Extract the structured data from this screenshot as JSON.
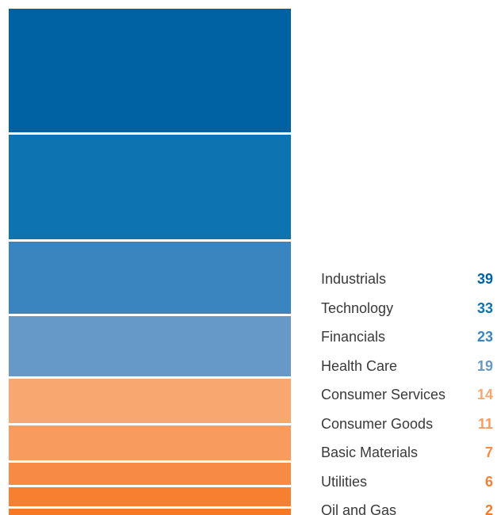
{
  "chart_data": {
    "type": "bar",
    "orientation": "stacked-vertical",
    "categories": [
      "Industrials",
      "Technology",
      "Financials",
      "Health Care",
      "Consumer Services",
      "Consumer Goods",
      "Basic Materials",
      "Utilities",
      "Oil and Gas"
    ],
    "values": [
      39,
      33,
      23,
      19,
      14,
      11,
      7,
      6,
      2
    ],
    "colors": [
      "#0062a3",
      "#0d73b1",
      "#3a85bf",
      "#6699c8",
      "#f8a770",
      "#f89b5e",
      "#f78b45",
      "#f6802f",
      "#f47a28"
    ],
    "value_colors": [
      "#0062a3",
      "#0d73b1",
      "#3a85bf",
      "#6699c8",
      "#f8a770",
      "#f89b5e",
      "#f78b45",
      "#f6802f",
      "#f47a28"
    ],
    "legend_position": "bottom-right",
    "title": "",
    "xlabel": "",
    "ylabel": ""
  }
}
